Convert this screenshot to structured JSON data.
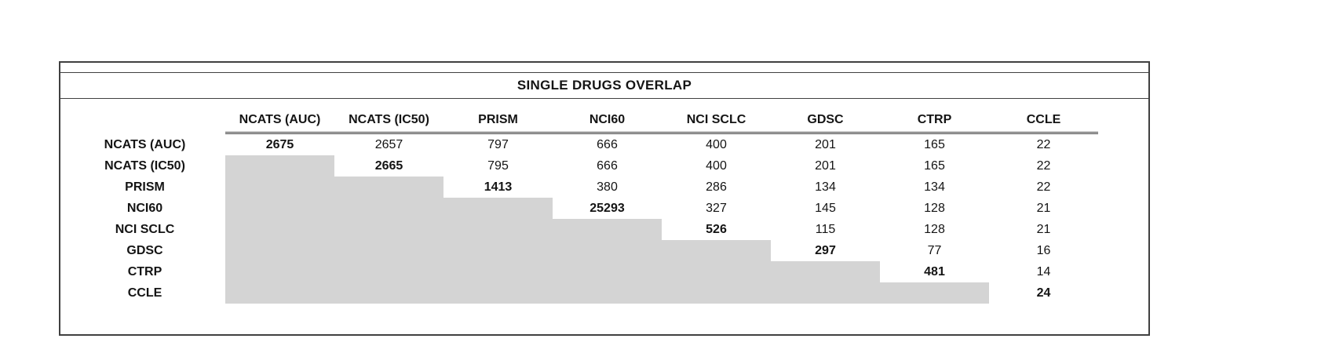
{
  "chart_data": {
    "type": "table",
    "title": "SINGLE DRUGS OVERLAP",
    "columns": [
      "NCATS (AUC)",
      "NCATS (IC50)",
      "PRISM",
      "NCI60",
      "NCI SCLC",
      "GDSC",
      "CTRP",
      "CCLE"
    ],
    "rows": [
      {
        "label": "NCATS (AUC)",
        "values": [
          "2675",
          "2657",
          "797",
          "666",
          "400",
          "201",
          "165",
          "22"
        ]
      },
      {
        "label": "NCATS (IC50)",
        "values": [
          "",
          "2665",
          "795",
          "666",
          "400",
          "201",
          "165",
          "22"
        ]
      },
      {
        "label": "PRISM",
        "values": [
          "",
          "",
          "1413",
          "380",
          "286",
          "134",
          "134",
          "22"
        ]
      },
      {
        "label": "NCI60",
        "values": [
          "",
          "",
          "",
          "25293",
          "327",
          "145",
          "128",
          "21"
        ]
      },
      {
        "label": "NCI SCLC",
        "values": [
          "",
          "",
          "",
          "",
          "526",
          "115",
          "128",
          "21"
        ]
      },
      {
        "label": "GDSC",
        "values": [
          "",
          "",
          "",
          "",
          "",
          "297",
          "77",
          "16"
        ]
      },
      {
        "label": "CTRP",
        "values": [
          "",
          "",
          "",
          "",
          "",
          "",
          "481",
          "14"
        ]
      },
      {
        "label": "CCLE",
        "values": [
          "",
          "",
          "",
          "",
          "",
          "",
          "",
          "24"
        ]
      }
    ],
    "colors": {
      "shaded_cell": "#d4d4d4",
      "border": "#404040"
    }
  }
}
